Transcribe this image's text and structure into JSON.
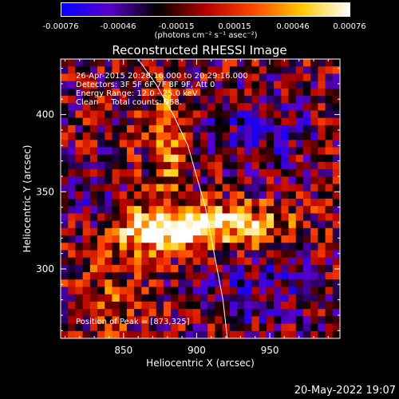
{
  "colorbar": {
    "ticks": [
      "-0.00076",
      "-0.00046",
      "-0.00015",
      "0.00015",
      "0.00046",
      "0.00076"
    ],
    "units": "(photons cm⁻² s⁻¹ asec⁻²)"
  },
  "chart_data": {
    "type": "heatmap",
    "title": "Reconstructed RHESSI Image",
    "xlabel": "Heliocentric X (arcsec)",
    "ylabel": "Heliocentric Y (arcsec)",
    "xlim": [
      807,
      998
    ],
    "ylim": [
      255,
      436
    ],
    "xticks": [
      "850",
      "900",
      "950"
    ],
    "yticks": [
      "300",
      "350",
      "400"
    ],
    "color_range": [
      -0.00076,
      0.00076
    ],
    "colormap": [
      "#0000ff",
      "#5a00c8",
      "#000000",
      "#b40000",
      "#ff4600",
      "#ffc800",
      "#ffffff"
    ],
    "peak": [
      873,
      325
    ],
    "annotations": {
      "time": "26-Apr-2015 20:28:16.000 to 20:29:16.000",
      "detectors": "Detectors: 3F 5F 6F 7F 8F 9F, Att 0",
      "energy": "Energy Range: 12.0 - 25.0 keV",
      "clean": "Clean     Total counts: 958.",
      "peak": "Position of Peak = [873,325]"
    },
    "limb_curve": [
      [
        860,
        436
      ],
      [
        872,
        420
      ],
      [
        884,
        400
      ],
      [
        894,
        380
      ],
      [
        900,
        360
      ],
      [
        906,
        340
      ],
      [
        910,
        320
      ],
      [
        914,
        300
      ],
      [
        918,
        280
      ],
      [
        921,
        255
      ]
    ]
  },
  "footer": {
    "date": "20-May-2022 19:07"
  }
}
